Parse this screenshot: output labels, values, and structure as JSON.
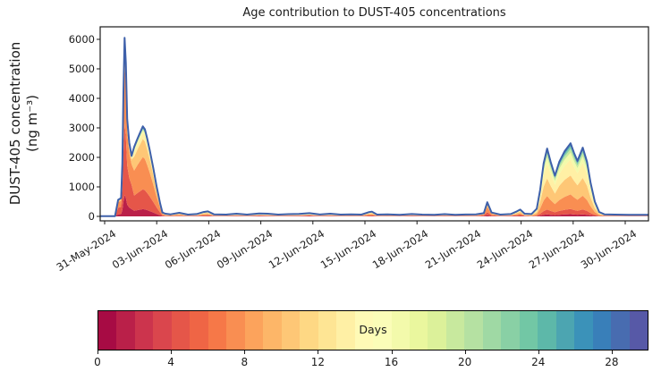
{
  "chart_data": {
    "type": "stacked-area",
    "title": "Age contribution to DUST-405 concentrations",
    "ylabel_line1": "DUST-405 concentration",
    "ylabel_line2": "(ng m⁻³)",
    "y_ticks": [
      0,
      1000,
      2000,
      3000,
      4000,
      5000,
      6000
    ],
    "ylim": [
      0,
      6400
    ],
    "x_tick_labels": [
      "31-May-2024",
      "03-Jun-2024",
      "06-Jun-2024",
      "09-Jun-2024",
      "12-Jun-2024",
      "15-Jun-2024",
      "18-Jun-2024",
      "21-Jun-2024",
      "24-Jun-2024",
      "27-Jun-2024",
      "30-Jun-2024"
    ],
    "x_tick_days": [
      0,
      3,
      6,
      9,
      12,
      15,
      18,
      21,
      24,
      27,
      30
    ],
    "x_range_days": [
      -0.26,
      31.34
    ],
    "age_bins": {
      "count": 10,
      "days_per_bin": 3,
      "total_days": 30
    },
    "samples": {
      "t": [
        -0.26,
        0.6,
        0.78,
        0.95,
        1.02,
        1.08,
        1.15,
        1.22,
        1.3,
        1.42,
        1.55,
        1.7,
        1.9,
        2.05,
        2.2,
        2.32,
        2.45,
        2.6,
        2.8,
        3.0,
        3.2,
        3.33,
        3.5,
        3.8,
        4.3,
        4.8,
        5.3,
        5.7,
        5.95,
        6.3,
        7.0,
        7.6,
        8.2,
        8.9,
        9.4,
        10.0,
        10.6,
        11.2,
        11.8,
        12.4,
        13.0,
        13.6,
        14.2,
        14.8,
        15.2,
        15.4,
        15.7,
        16.3,
        17.0,
        17.7,
        18.3,
        19.0,
        19.6,
        20.2,
        20.8,
        21.4,
        21.85,
        22.05,
        22.3,
        22.8,
        23.4,
        23.75,
        23.95,
        24.2,
        24.6,
        24.9,
        25.1,
        25.3,
        25.5,
        25.7,
        25.95,
        26.2,
        26.5,
        26.85,
        27.05,
        27.25,
        27.55,
        27.8,
        28.0,
        28.25,
        28.5,
        28.8,
        29.4,
        30.2,
        31.34
      ],
      "total": [
        5,
        10,
        560,
        620,
        1800,
        4200,
        6050,
        5200,
        3300,
        2500,
        2050,
        2350,
        2650,
        2850,
        3050,
        2950,
        2650,
        2250,
        1650,
        1000,
        430,
        130,
        90,
        70,
        120,
        60,
        80,
        150,
        170,
        70,
        60,
        90,
        60,
        100,
        90,
        60,
        75,
        85,
        110,
        65,
        90,
        60,
        70,
        60,
        140,
        160,
        60,
        70,
        50,
        80,
        60,
        55,
        75,
        55,
        65,
        70,
        110,
        480,
        130,
        60,
        80,
        170,
        230,
        90,
        80,
        260,
        900,
        1800,
        2300,
        1850,
        1380,
        1850,
        2200,
        2480,
        2150,
        1880,
        2330,
        1850,
        1150,
        500,
        150,
        70,
        60,
        55,
        50
      ],
      "profile": [
        "base",
        "base",
        "fresh1",
        "fresh1",
        "fresh1",
        "fresh1",
        "fresh1",
        "fresh1",
        "fresh1",
        "fresh1",
        "fresh1",
        "fresh2",
        "fresh2",
        "fresh2",
        "fresh2",
        "fresh2",
        "fresh2",
        "fresh2",
        "fresh2",
        "fresh2",
        "fresh2",
        "fresh2",
        "mid",
        "mid",
        "mid",
        "base",
        "base",
        "mid",
        "mid",
        "base",
        "base",
        "base",
        "base",
        "base",
        "base",
        "base",
        "base",
        "base",
        "base",
        "base",
        "base",
        "base",
        "base",
        "base",
        "mid",
        "mid",
        "base",
        "base",
        "base",
        "base",
        "base",
        "base",
        "base",
        "base",
        "base",
        "base",
        "fresh2",
        "fresh2",
        "fresh2",
        "base",
        "base",
        "mid",
        "mid",
        "base",
        "aged",
        "aged",
        "aged",
        "aged",
        "aged",
        "aged",
        "aged",
        "aged",
        "aged",
        "aged",
        "aged",
        "aged",
        "aged",
        "aged",
        "aged",
        "aged",
        "aged",
        "base",
        "base",
        "base",
        "base"
      ]
    },
    "profiles": {
      "fresh1": [
        0.12,
        0.4,
        0.34,
        0.08,
        0.02,
        0.01,
        0.008,
        0.007,
        0.008,
        0.007
      ],
      "fresh2": [
        0.08,
        0.22,
        0.36,
        0.2,
        0.07,
        0.025,
        0.013,
        0.008,
        0.012,
        0.012
      ],
      "mid": [
        0.07,
        0.14,
        0.24,
        0.23,
        0.14,
        0.08,
        0.04,
        0.025,
        0.02,
        0.015
      ],
      "aged": [
        0.03,
        0.07,
        0.2,
        0.26,
        0.22,
        0.09,
        0.05,
        0.035,
        0.025,
        0.02
      ],
      "base": [
        0.14,
        0.14,
        0.12,
        0.1,
        0.09,
        0.08,
        0.08,
        0.08,
        0.085,
        0.085
      ]
    },
    "colorbar": {
      "label": "Days",
      "ticks": [
        0,
        4,
        8,
        12,
        16,
        20,
        24,
        28
      ],
      "range": [
        0,
        30
      ],
      "n_segments": 30,
      "orientation": "horizontal"
    },
    "colormap_stops": [
      [
        0.0,
        "#9e0142"
      ],
      [
        0.1,
        "#d53e4f"
      ],
      [
        0.2,
        "#f46d43"
      ],
      [
        0.3,
        "#fdae61"
      ],
      [
        0.4,
        "#fee08b"
      ],
      [
        0.5,
        "#ffffbf"
      ],
      [
        0.6,
        "#e6f598"
      ],
      [
        0.7,
        "#abdda4"
      ],
      [
        0.8,
        "#66c2a5"
      ],
      [
        0.9,
        "#3288bd"
      ],
      [
        1.0,
        "#5e4fa2"
      ]
    ],
    "envelope_color": "#3e60aa",
    "axis_color": "#1a1a1a",
    "background_color": "#ffffff",
    "legend_position": "none",
    "grid": false
  }
}
